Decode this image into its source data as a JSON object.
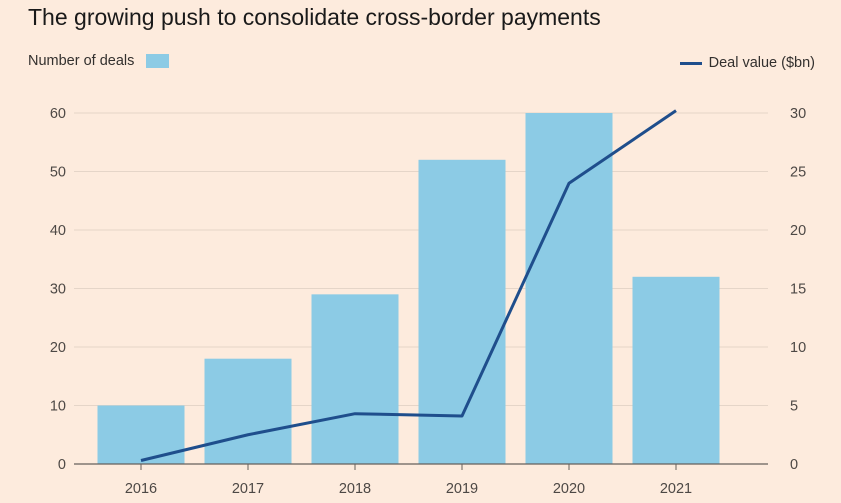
{
  "chart_data": {
    "type": "bar",
    "title": "The growing push to consolidate cross-border payments",
    "categories": [
      "2016",
      "2017",
      "2018",
      "2019",
      "2020",
      "2021"
    ],
    "series": [
      {
        "name": "Number of deals",
        "type": "bar",
        "axis": "left",
        "values": [
          10,
          18,
          29,
          52,
          60,
          32
        ]
      },
      {
        "name": "Deal value ($bn)",
        "type": "line",
        "axis": "right",
        "values": [
          0.3,
          2.5,
          4.3,
          4.1,
          24,
          30.2
        ]
      }
    ],
    "y_left": {
      "ylim": [
        0,
        60
      ],
      "ticks": [
        "0",
        "10",
        "20",
        "30",
        "40",
        "50",
        "60"
      ]
    },
    "y_right": {
      "ylim": [
        0,
        30
      ],
      "ticks": [
        "0",
        "5",
        "10",
        "15",
        "20",
        "25",
        "30"
      ]
    },
    "grid": true,
    "legend": {
      "left": "Number of deals",
      "right": "Deal value ($bn)"
    }
  },
  "colors": {
    "background": "#fdebdd",
    "bar": "#8ccbe5",
    "line": "#1f4e8c",
    "grid": "#e5d5c8",
    "axis": "#66605c"
  }
}
